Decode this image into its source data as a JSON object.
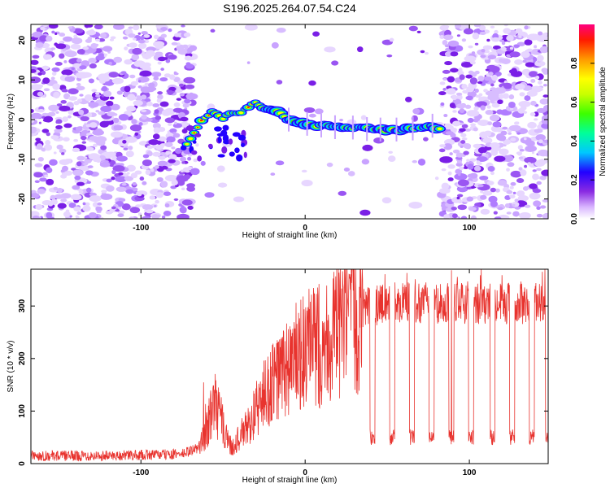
{
  "title": "S196.2025.264.07.54.C24",
  "chart_data": [
    {
      "type": "heatmap",
      "xlabel": "Height of straight line (km)",
      "ylabel": "Frequency (Hz)",
      "xlim": [
        -167,
        148
      ],
      "ylim": [
        -25,
        24
      ],
      "x_ticks": [
        -100,
        0,
        100
      ],
      "y_ticks": [
        -20,
        -10,
        0,
        10,
        20
      ],
      "noise_left_x": [
        -167,
        -68
      ],
      "noise_right_x": [
        83,
        148
      ],
      "trace": [
        {
          "x": -72,
          "y": -6
        },
        {
          "x": -66,
          "y": -2
        },
        {
          "x": -60,
          "y": 1
        },
        {
          "x": -55,
          "y": 2
        },
        {
          "x": -50,
          "y": 0
        },
        {
          "x": -45,
          "y": 2
        },
        {
          "x": -40,
          "y": 1
        },
        {
          "x": -35,
          "y": 3
        },
        {
          "x": -30,
          "y": 4
        },
        {
          "x": -25,
          "y": 3
        },
        {
          "x": -18,
          "y": 2
        },
        {
          "x": -10,
          "y": 0
        },
        {
          "x": 0,
          "y": -1
        },
        {
          "x": 10,
          "y": -1.5
        },
        {
          "x": 20,
          "y": -2
        },
        {
          "x": 30,
          "y": -2
        },
        {
          "x": 40,
          "y": -2.5
        },
        {
          "x": 50,
          "y": -2.5
        },
        {
          "x": 60,
          "y": -2.5
        },
        {
          "x": 70,
          "y": -2
        },
        {
          "x": 78,
          "y": -1.5
        },
        {
          "x": 84,
          "y": -3
        }
      ],
      "colorbar": {
        "label": "Normalized spectral amplitude",
        "ticks": [
          0.0,
          0.2,
          0.4,
          0.6,
          0.8
        ],
        "range": [
          0,
          1
        ]
      }
    },
    {
      "type": "line",
      "xlabel": "Height of straight line (km)",
      "ylabel": "SNR (10 * v/v)",
      "xlim": [
        -167,
        148
      ],
      "ylim": [
        0,
        370
      ],
      "x_ticks": [
        -100,
        0,
        100
      ],
      "y_ticks": [
        0,
        100,
        200,
        300
      ],
      "color": "#e8332e",
      "envelope": [
        {
          "x": -167,
          "y": 15
        },
        {
          "x": -120,
          "y": 15
        },
        {
          "x": -75,
          "y": 18
        },
        {
          "x": -65,
          "y": 30
        },
        {
          "x": -60,
          "y": 60
        },
        {
          "x": -56,
          "y": 120
        },
        {
          "x": -52,
          "y": 90
        },
        {
          "x": -45,
          "y": 30
        },
        {
          "x": -35,
          "y": 70
        },
        {
          "x": -25,
          "y": 130
        },
        {
          "x": -15,
          "y": 170
        },
        {
          "x": -5,
          "y": 200
        },
        {
          "x": 5,
          "y": 220
        },
        {
          "x": 15,
          "y": 240
        },
        {
          "x": 25,
          "y": 270
        },
        {
          "x": 35,
          "y": 295
        },
        {
          "x": 50,
          "y": 305
        },
        {
          "x": 148,
          "y": 305
        }
      ],
      "dropouts_x": [
        41,
        53,
        65,
        77,
        89,
        101,
        114,
        126,
        138,
        148
      ],
      "dropout_level": 50
    }
  ]
}
